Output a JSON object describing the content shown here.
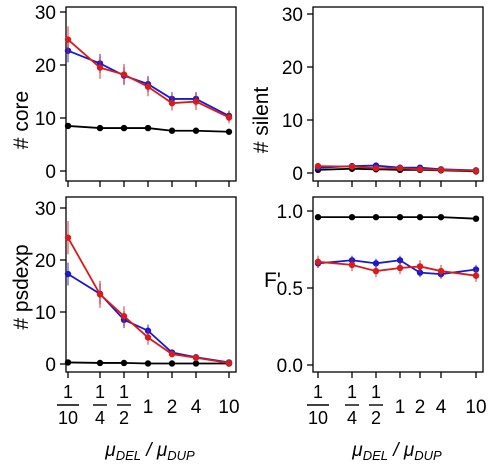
{
  "chart_data": [
    {
      "type": "line",
      "ylabel": "# core",
      "ylim": [
        0,
        30
      ],
      "yticks": [
        "0",
        "10",
        "20",
        "30"
      ],
      "ytick_values": [
        0,
        10,
        20,
        30
      ],
      "series": [
        {
          "color": "#000000",
          "values": [
            8.5,
            8.1,
            8.1,
            8.1,
            7.6,
            7.6,
            7.4
          ],
          "err": [
            0,
            0,
            0,
            0,
            0,
            0,
            0
          ]
        },
        {
          "color": "#1a1acc",
          "values": [
            22.7,
            20.3,
            18.0,
            16.4,
            13.6,
            13.6,
            10.4
          ],
          "err": [
            2.2,
            1.8,
            1.6,
            1.5,
            1.3,
            1.3,
            1.0
          ]
        },
        {
          "color": "#d81b1b",
          "values": [
            24.8,
            19.5,
            18.2,
            15.9,
            12.8,
            13.1,
            10.1
          ],
          "err": [
            2.5,
            2.1,
            2.0,
            1.8,
            1.4,
            1.6,
            1.1
          ]
        }
      ]
    },
    {
      "type": "line",
      "ylabel": "# silent",
      "ylim": [
        0,
        30
      ],
      "yticks": [
        "0",
        "10",
        "20",
        "30"
      ],
      "ytick_values": [
        0,
        10,
        20,
        30
      ],
      "series": [
        {
          "color": "#000000",
          "values": [
            0.6,
            0.8,
            0.7,
            0.6,
            0.6,
            0.5,
            0.3
          ],
          "err": [
            0,
            0,
            0,
            0,
            0,
            0,
            0
          ]
        },
        {
          "color": "#1a1acc",
          "values": [
            1.0,
            1.3,
            1.4,
            1.0,
            1.0,
            0.7,
            0.5
          ],
          "err": [
            0.4,
            0.4,
            0.4,
            0.3,
            0.3,
            0.3,
            0.2
          ]
        },
        {
          "color": "#d81b1b",
          "values": [
            1.3,
            1.2,
            0.9,
            0.9,
            0.7,
            0.6,
            0.4
          ],
          "err": [
            0.6,
            0.5,
            0.4,
            0.4,
            0.3,
            0.3,
            0.2
          ]
        }
      ]
    },
    {
      "type": "line",
      "ylabel": "# psdexp",
      "ylim": [
        0,
        30
      ],
      "yticks": [
        "0",
        "10",
        "20",
        "30"
      ],
      "ytick_values": [
        0,
        10,
        20,
        30
      ],
      "series": [
        {
          "color": "#000000",
          "values": [
            0.3,
            0.2,
            0.2,
            0.1,
            0.1,
            0.1,
            0.1
          ],
          "err": [
            0,
            0,
            0,
            0,
            0,
            0,
            0
          ]
        },
        {
          "color": "#1a1acc",
          "values": [
            17.3,
            13.5,
            8.5,
            6.4,
            2.2,
            1.3,
            0.3
          ],
          "err": [
            2.2,
            2.0,
            1.6,
            1.2,
            0.5,
            0.4,
            0.2
          ]
        },
        {
          "color": "#d81b1b",
          "values": [
            24.3,
            13.4,
            9.2,
            5.1,
            1.9,
            1.2,
            0.2
          ],
          "err": [
            3.2,
            2.6,
            1.9,
            1.4,
            0.6,
            0.5,
            0.2
          ]
        }
      ]
    },
    {
      "type": "line",
      "ylabel": "F'",
      "ylim": [
        0,
        1
      ],
      "yticks": [
        "0.0",
        "0.5",
        "1.0"
      ],
      "ytick_values": [
        0,
        0.5,
        1.0
      ],
      "series": [
        {
          "color": "#000000",
          "values": [
            0.96,
            0.96,
            0.96,
            0.96,
            0.96,
            0.96,
            0.95
          ],
          "err": [
            0,
            0,
            0,
            0,
            0,
            0,
            0
          ]
        },
        {
          "color": "#1a1acc",
          "values": [
            0.66,
            0.68,
            0.66,
            0.68,
            0.6,
            0.59,
            0.62
          ],
          "err": [
            0.03,
            0.03,
            0.03,
            0.03,
            0.03,
            0.03,
            0.03
          ]
        },
        {
          "color": "#d81b1b",
          "values": [
            0.67,
            0.65,
            0.61,
            0.63,
            0.64,
            0.61,
            0.58
          ],
          "err": [
            0.04,
            0.04,
            0.04,
            0.04,
            0.04,
            0.04,
            0.04
          ]
        }
      ]
    }
  ],
  "x_ticks": [
    {
      "num": "1",
      "den": "10"
    },
    {
      "num": "1",
      "den": "4"
    },
    {
      "num": "1",
      "den": "2"
    },
    {
      "label": "1"
    },
    {
      "label": "2"
    },
    {
      "label": "4"
    },
    {
      "label": "10"
    }
  ],
  "x_title": {
    "mu": "μ",
    "del": "DEL",
    "slash": " / ",
    "dup": "DUP"
  }
}
